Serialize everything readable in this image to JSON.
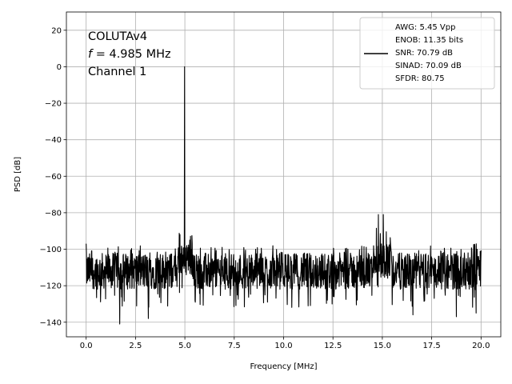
{
  "chart_data": {
    "type": "line",
    "xlabel": "Frequency [MHz]",
    "ylabel": "PSD [dB]",
    "xlim": [
      -1.0,
      21.0
    ],
    "ylim": [
      -148,
      30
    ],
    "xticks": [
      0.0,
      2.5,
      5.0,
      7.5,
      10.0,
      12.5,
      15.0,
      17.5,
      20.0
    ],
    "xtick_labels": [
      "0.0",
      "2.5",
      "5.0",
      "7.5",
      "10.0",
      "12.5",
      "15.0",
      "17.5",
      "20.0"
    ],
    "yticks": [
      20,
      0,
      -20,
      -40,
      -60,
      -80,
      -100,
      -120,
      -140
    ],
    "ytick_labels": [
      "20",
      "0",
      "−20",
      "−40",
      "−60",
      "−80",
      "−100",
      "−120",
      "−140"
    ],
    "grid": true,
    "legend_position": "top-right",
    "annotation": {
      "line1": "COLUTAv4",
      "line2_var": "f",
      "line2_rest": " = 4.985 MHz",
      "line3": "Channel 1"
    },
    "legend": [
      "AWG: 5.45 Vpp",
      "ENOB: 11.35 bits",
      "SNR: 70.79 dB",
      "SINAD: 70.09 dB",
      "SFDR: 80.75"
    ],
    "series": [
      {
        "color": "#000000",
        "noise_floor": {
          "x_range": [
            0.0,
            20.0
          ],
          "center_db": -112,
          "band_low_db": -122,
          "band_high_db": -102
        },
        "peaks": [
          {
            "x": 4.985,
            "y": 0
          },
          {
            "x": 4.75,
            "y": -92
          },
          {
            "x": 5.25,
            "y": -95
          },
          {
            "x": 14.8,
            "y": -81
          },
          {
            "x": 15.05,
            "y": -81
          },
          {
            "x": 19.8,
            "y": -100
          },
          {
            "x": 0.0,
            "y": -97
          }
        ],
        "dips": [
          {
            "x": 1.7,
            "y": -141
          },
          {
            "x": 3.15,
            "y": -138
          },
          {
            "x": 18.75,
            "y": -137
          },
          {
            "x": 19.75,
            "y": -135
          },
          {
            "x": 16.55,
            "y": -136
          }
        ]
      }
    ]
  }
}
